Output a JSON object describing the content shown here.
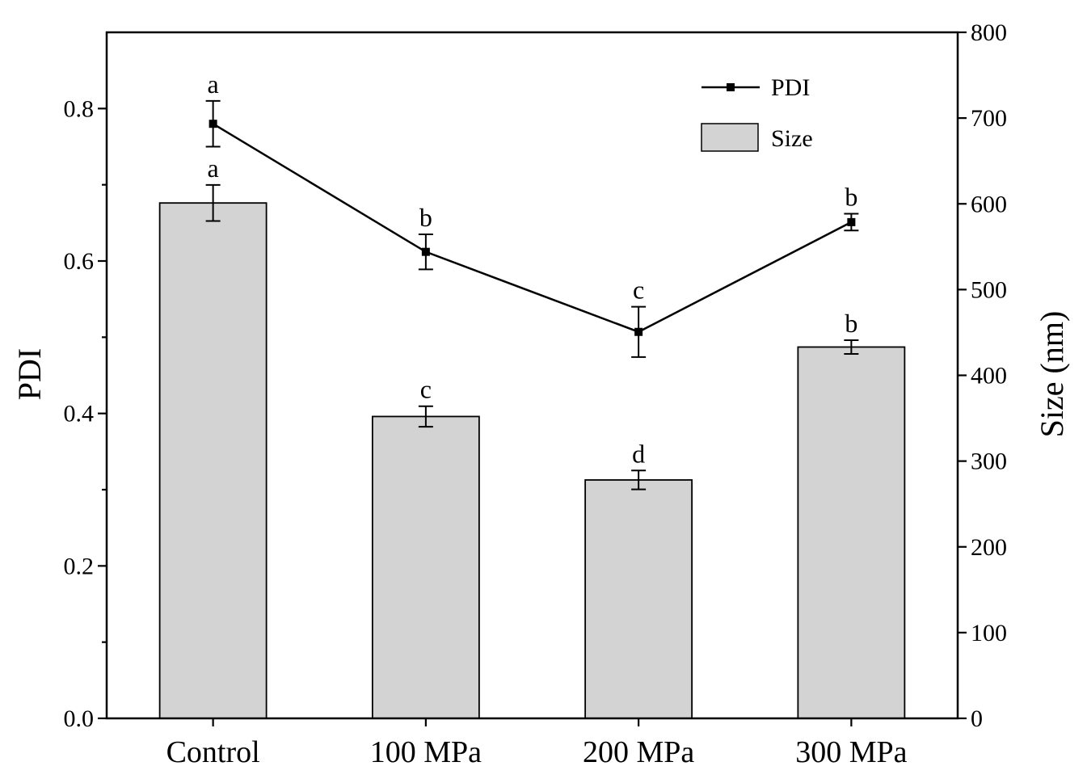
{
  "chart_data": {
    "type": "bar+line",
    "categories": [
      "Control",
      "100 MPa",
      "200 MPa",
      "300 MPa"
    ],
    "left_axis": {
      "label": "PDI",
      "ylim": [
        0,
        0.9
      ],
      "ticks": [
        "0.0",
        "0.2",
        "0.4",
        "0.6",
        "0.8"
      ],
      "tick_values": [
        0,
        0.2,
        0.4,
        0.6,
        0.8
      ]
    },
    "right_axis": {
      "label": "Size (nm)",
      "ylim": [
        0,
        800
      ],
      "ticks": [
        "0",
        "100",
        "200",
        "300",
        "400",
        "500",
        "600",
        "700",
        "800"
      ],
      "tick_values": [
        0,
        100,
        200,
        300,
        400,
        500,
        600,
        700,
        800
      ]
    },
    "series": [
      {
        "name": "Size",
        "type": "bar",
        "axis": "right",
        "color": "#d3d3d3",
        "values": [
          601,
          352,
          278,
          433
        ],
        "errors": [
          21,
          12,
          11,
          8
        ],
        "letters": [
          "a",
          "c",
          "d",
          "b"
        ]
      },
      {
        "name": "PDI",
        "type": "line",
        "axis": "left",
        "color": "#000000",
        "values": [
          0.78,
          0.612,
          0.507,
          0.651
        ],
        "errors": [
          0.03,
          0.023,
          0.033,
          0.011
        ],
        "letters": [
          "a",
          "b",
          "c",
          "b"
        ]
      }
    ],
    "legend": {
      "position": "top-right",
      "entries": [
        "PDI",
        "Size"
      ]
    },
    "grid": false
  }
}
